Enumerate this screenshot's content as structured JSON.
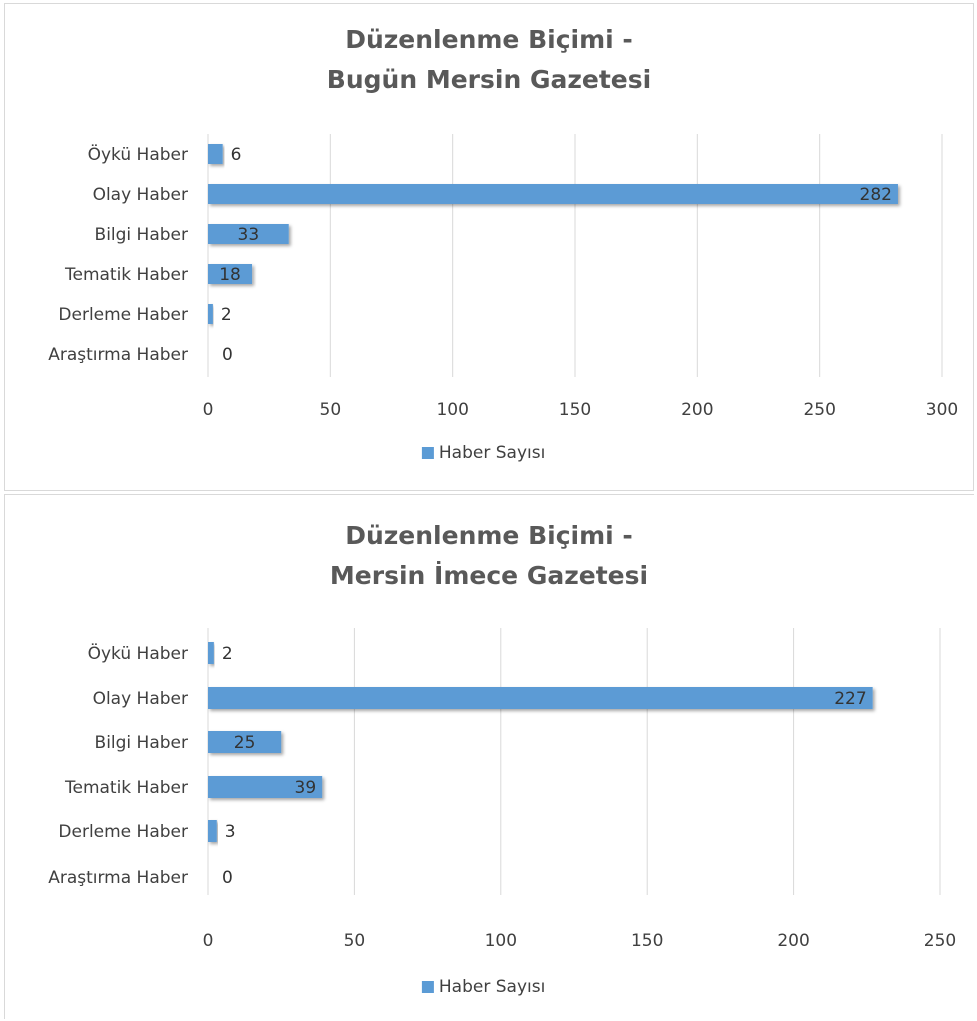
{
  "chart_data": [
    {
      "type": "bar",
      "orientation": "horizontal",
      "title": [
        "Düzenlenme Biçimi -",
        "Bugün Mersin Gazetesi"
      ],
      "categories": [
        "Öykü Haber",
        "Olay Haber",
        "Bilgi Haber",
        "Tematik Haber",
        "Derleme Haber",
        "Araştırma Haber"
      ],
      "series": [
        {
          "name": "Haber Sayısı",
          "values": [
            6,
            282,
            33,
            18,
            2,
            0
          ]
        }
      ],
      "xlim": [
        0,
        300
      ],
      "xticks": [
        0,
        50,
        100,
        150,
        200,
        250,
        300
      ],
      "grid": true,
      "data_labels": true,
      "legend": "bottom",
      "bar_color": "#5b9bd5"
    },
    {
      "type": "bar",
      "orientation": "horizontal",
      "title": [
        "Düzenlenme Biçimi -",
        "Mersin İmece Gazetesi"
      ],
      "categories": [
        "Öykü Haber",
        "Olay Haber",
        "Bilgi Haber",
        "Tematik Haber",
        "Derleme Haber",
        "Araştırma Haber"
      ],
      "series": [
        {
          "name": "Haber Sayısı",
          "values": [
            2,
            227,
            25,
            39,
            3,
            0
          ]
        }
      ],
      "xlim": [
        0,
        250
      ],
      "xticks": [
        0,
        50,
        100,
        150,
        200,
        250
      ],
      "grid": true,
      "data_labels": true,
      "legend": "bottom",
      "bar_color": "#5b9bd5"
    }
  ]
}
